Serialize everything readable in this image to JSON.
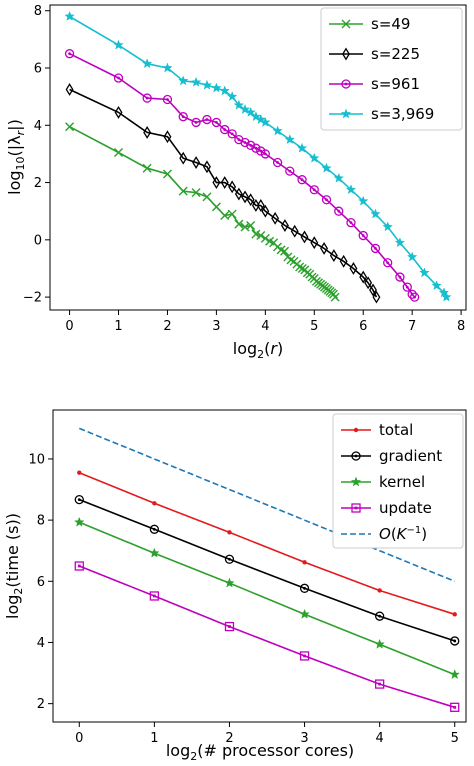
{
  "chart_data": [
    {
      "type": "line",
      "xlabel": "log₂(r)",
      "ylabel": "log₁₀(|λᵣ|)",
      "xlim": [
        -0.4,
        8.1
      ],
      "ylim": [
        -2.45,
        8.2
      ],
      "xticks": [
        0,
        1,
        2,
        3,
        4,
        5,
        6,
        7,
        8
      ],
      "yticks": [
        -2,
        0,
        2,
        4,
        6,
        8
      ],
      "legend_position": "upper right",
      "series": [
        {
          "name": "s=49",
          "color": "#2ca02c",
          "marker": "x",
          "x": [
            0,
            1,
            1.585,
            2,
            2.322,
            2.585,
            2.807,
            3,
            3.17,
            3.322,
            3.459,
            3.585,
            3.7,
            3.807,
            3.907,
            4,
            4.087,
            4.17,
            4.248,
            4.322,
            4.392,
            4.459,
            4.524,
            4.585,
            4.644,
            4.7,
            4.755,
            4.807,
            4.858,
            4.907,
            4.954,
            5,
            5.044,
            5.087,
            5.129,
            5.17,
            5.209,
            5.248,
            5.285,
            5.322,
            5.358,
            5.392,
            5.426
          ],
          "y": [
            3.95,
            3.05,
            2.5,
            2.3,
            1.7,
            1.65,
            1.5,
            1.15,
            0.85,
            0.9,
            0.55,
            0.45,
            0.5,
            0.2,
            0.15,
            0.05,
            -0.05,
            -0.1,
            -0.25,
            -0.35,
            -0.4,
            -0.6,
            -0.7,
            -0.75,
            -0.85,
            -0.95,
            -1.0,
            -1.05,
            -1.15,
            -1.2,
            -1.3,
            -1.35,
            -1.45,
            -1.5,
            -1.55,
            -1.6,
            -1.65,
            -1.7,
            -1.75,
            -1.8,
            -1.85,
            -1.9,
            -2.0
          ]
        },
        {
          "name": "s=225",
          "color": "#000000",
          "marker": "diamond",
          "x": [
            0,
            1,
            1.585,
            2,
            2.322,
            2.585,
            2.807,
            3,
            3.17,
            3.322,
            3.459,
            3.585,
            3.7,
            3.807,
            3.907,
            4,
            4.2,
            4.4,
            4.6,
            4.8,
            5,
            5.2,
            5.4,
            5.6,
            5.8,
            6,
            6.1,
            6.2,
            6.27
          ],
          "y": [
            5.25,
            4.45,
            3.75,
            3.6,
            2.85,
            2.7,
            2.55,
            2.0,
            2.0,
            1.85,
            1.6,
            1.5,
            1.4,
            1.2,
            1.2,
            1.0,
            0.75,
            0.5,
            0.3,
            0.1,
            -0.1,
            -0.3,
            -0.55,
            -0.75,
            -1.0,
            -1.3,
            -1.5,
            -1.75,
            -2.0
          ]
        },
        {
          "name": "s=961",
          "color": "#bf00bf",
          "marker": "o",
          "x": [
            0,
            1,
            1.585,
            2,
            2.322,
            2.585,
            2.807,
            3,
            3.17,
            3.322,
            3.459,
            3.585,
            3.7,
            3.807,
            3.907,
            4,
            4.25,
            4.5,
            4.75,
            5,
            5.25,
            5.5,
            5.75,
            6,
            6.25,
            6.5,
            6.75,
            6.9,
            7.0,
            7.05
          ],
          "y": [
            6.5,
            5.65,
            4.95,
            4.9,
            4.3,
            4.1,
            4.2,
            4.1,
            3.85,
            3.7,
            3.5,
            3.4,
            3.3,
            3.2,
            3.1,
            3.0,
            2.7,
            2.4,
            2.1,
            1.75,
            1.4,
            1.0,
            0.6,
            0.15,
            -0.3,
            -0.8,
            -1.3,
            -1.65,
            -1.9,
            -2.0
          ]
        },
        {
          "name": "s=3,969",
          "color": "#17becf",
          "marker": "star",
          "x": [
            0,
            1,
            1.585,
            2,
            2.322,
            2.585,
            2.807,
            3,
            3.17,
            3.322,
            3.459,
            3.585,
            3.7,
            3.807,
            3.907,
            4,
            4.25,
            4.5,
            4.75,
            5,
            5.25,
            5.5,
            5.75,
            6,
            6.25,
            6.5,
            6.75,
            7.0,
            7.25,
            7.5,
            7.65,
            7.7
          ],
          "y": [
            7.8,
            6.8,
            6.15,
            6.0,
            5.55,
            5.5,
            5.4,
            5.3,
            5.2,
            5.0,
            4.7,
            4.55,
            4.45,
            4.3,
            4.2,
            4.1,
            3.8,
            3.5,
            3.2,
            2.85,
            2.5,
            2.15,
            1.75,
            1.35,
            0.9,
            0.45,
            -0.1,
            -0.6,
            -1.15,
            -1.6,
            -1.85,
            -2.0
          ]
        }
      ]
    },
    {
      "type": "line",
      "xlabel": "log₂(# processor cores)",
      "ylabel": "log₂(time (s))",
      "xlim": [
        -0.35,
        5.15
      ],
      "ylim": [
        1.4,
        11.6
      ],
      "xticks": [
        0,
        1,
        2,
        3,
        4,
        5
      ],
      "yticks": [
        2,
        4,
        6,
        8,
        10
      ],
      "legend_position": "upper right",
      "series": [
        {
          "name": "total",
          "color": "#e31a1c",
          "marker": "dot",
          "x": [
            0,
            1,
            2,
            3,
            4,
            5
          ],
          "y": [
            9.55,
            8.55,
            7.6,
            6.62,
            5.7,
            4.92
          ]
        },
        {
          "name": "gradient",
          "color": "#000000",
          "marker": "o",
          "x": [
            0,
            1,
            2,
            3,
            4,
            5
          ],
          "y": [
            8.67,
            7.7,
            6.72,
            5.77,
            4.86,
            4.05
          ]
        },
        {
          "name": "kernel",
          "color": "#2ca02c",
          "marker": "star",
          "x": [
            0,
            1,
            2,
            3,
            4,
            5
          ],
          "y": [
            7.93,
            6.92,
            5.94,
            4.92,
            3.94,
            2.95
          ]
        },
        {
          "name": "update",
          "color": "#bf00bf",
          "marker": "square",
          "x": [
            0,
            1,
            2,
            3,
            4,
            5
          ],
          "y": [
            6.5,
            5.52,
            4.52,
            3.56,
            2.64,
            1.88
          ]
        },
        {
          "name": "O(K⁻¹)",
          "color": "#1f77b4",
          "marker": "none",
          "dashed": true,
          "x": [
            0,
            5
          ],
          "y": [
            11.0,
            6.0
          ]
        }
      ]
    }
  ]
}
